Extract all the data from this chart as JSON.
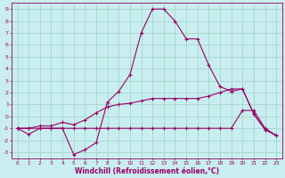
{
  "bg_color": "#c8eef0",
  "grid_color": "#a0d0c8",
  "line_color": "#990066",
  "xlabel": "Windchill (Refroidissement éolien,°C)",
  "xlabel_color": "#990066",
  "tick_color": "#990066",
  "ylim": [
    -3.5,
    9.5
  ],
  "xlim": [
    -0.5,
    23.5
  ],
  "yticks": [
    -3,
    -2,
    -1,
    0,
    1,
    2,
    3,
    4,
    5,
    6,
    7,
    8,
    9
  ],
  "xticks": [
    0,
    1,
    2,
    3,
    4,
    5,
    6,
    7,
    8,
    9,
    10,
    11,
    12,
    13,
    14,
    15,
    16,
    17,
    18,
    19,
    20,
    21,
    22,
    23
  ],
  "line1_x": [
    0,
    1,
    2,
    3,
    4,
    5,
    6,
    7,
    8,
    9,
    10,
    11,
    12,
    13,
    14,
    15,
    16,
    17,
    18,
    19,
    20,
    21,
    22,
    23
  ],
  "line1_y": [
    -1.0,
    -1.5,
    -1.0,
    -1.0,
    -1.0,
    -3.2,
    -2.8,
    -2.2,
    1.2,
    2.1,
    3.5,
    7.0,
    9.0,
    9.0,
    8.0,
    6.5,
    6.5,
    4.3,
    2.5,
    2.1,
    2.3,
    0.2,
    -1.1,
    -1.6
  ],
  "line2_x": [
    0,
    1,
    2,
    3,
    4,
    5,
    6,
    7,
    8,
    9,
    10,
    11,
    12,
    13,
    14,
    15,
    16,
    17,
    18,
    19,
    20,
    21,
    22,
    23
  ],
  "line2_y": [
    -1.0,
    -1.0,
    -0.8,
    -0.8,
    -0.5,
    -0.7,
    -0.3,
    0.3,
    0.8,
    1.0,
    1.1,
    1.3,
    1.5,
    1.5,
    1.5,
    1.5,
    1.5,
    1.7,
    2.0,
    2.3,
    2.3,
    0.2,
    -1.1,
    -1.6
  ],
  "line3_x": [
    0,
    1,
    2,
    3,
    4,
    5,
    6,
    7,
    8,
    9,
    10,
    11,
    12,
    13,
    14,
    15,
    16,
    17,
    18,
    19,
    20,
    21,
    22,
    23
  ],
  "line3_y": [
    -1.0,
    -1.0,
    -1.0,
    -1.0,
    -1.0,
    -1.0,
    -1.0,
    -1.0,
    -1.0,
    -1.0,
    -1.0,
    -1.0,
    -1.0,
    -1.0,
    -1.0,
    -1.0,
    -1.0,
    -1.0,
    -1.0,
    -1.0,
    0.5,
    0.5,
    -1.0,
    -1.6
  ]
}
